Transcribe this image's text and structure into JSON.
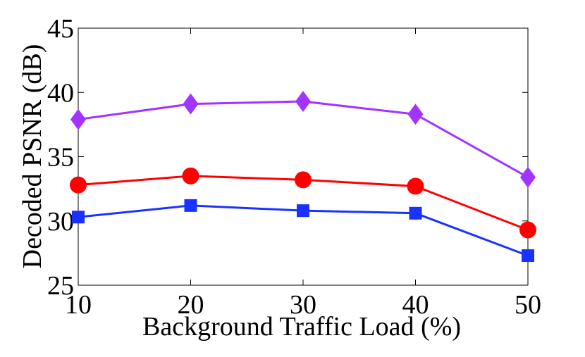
{
  "chart_data": {
    "type": "line",
    "title": "",
    "xlabel": "Background Traffic Load (%)",
    "ylabel": "Decoded PSNR (dB)",
    "x": [
      10,
      20,
      30,
      40,
      50
    ],
    "xlim": [
      10,
      50
    ],
    "ylim": [
      25,
      45
    ],
    "xticks": [
      "10",
      "20",
      "30",
      "40",
      "50"
    ],
    "yticks": [
      "25",
      "30",
      "35",
      "40",
      "45"
    ],
    "grid": false,
    "legend": "none",
    "series": [
      {
        "name": "diamond-series",
        "color": "#a333ff",
        "marker": "diamond",
        "values": [
          37.9,
          39.1,
          39.3,
          38.3,
          33.4
        ]
      },
      {
        "name": "circle-series",
        "color": "#ff0000",
        "marker": "circle",
        "values": [
          32.8,
          33.5,
          33.2,
          32.7,
          29.3
        ]
      },
      {
        "name": "square-series",
        "color": "#1a32ff",
        "marker": "square",
        "values": [
          30.3,
          31.2,
          30.8,
          30.6,
          27.3
        ]
      }
    ]
  }
}
